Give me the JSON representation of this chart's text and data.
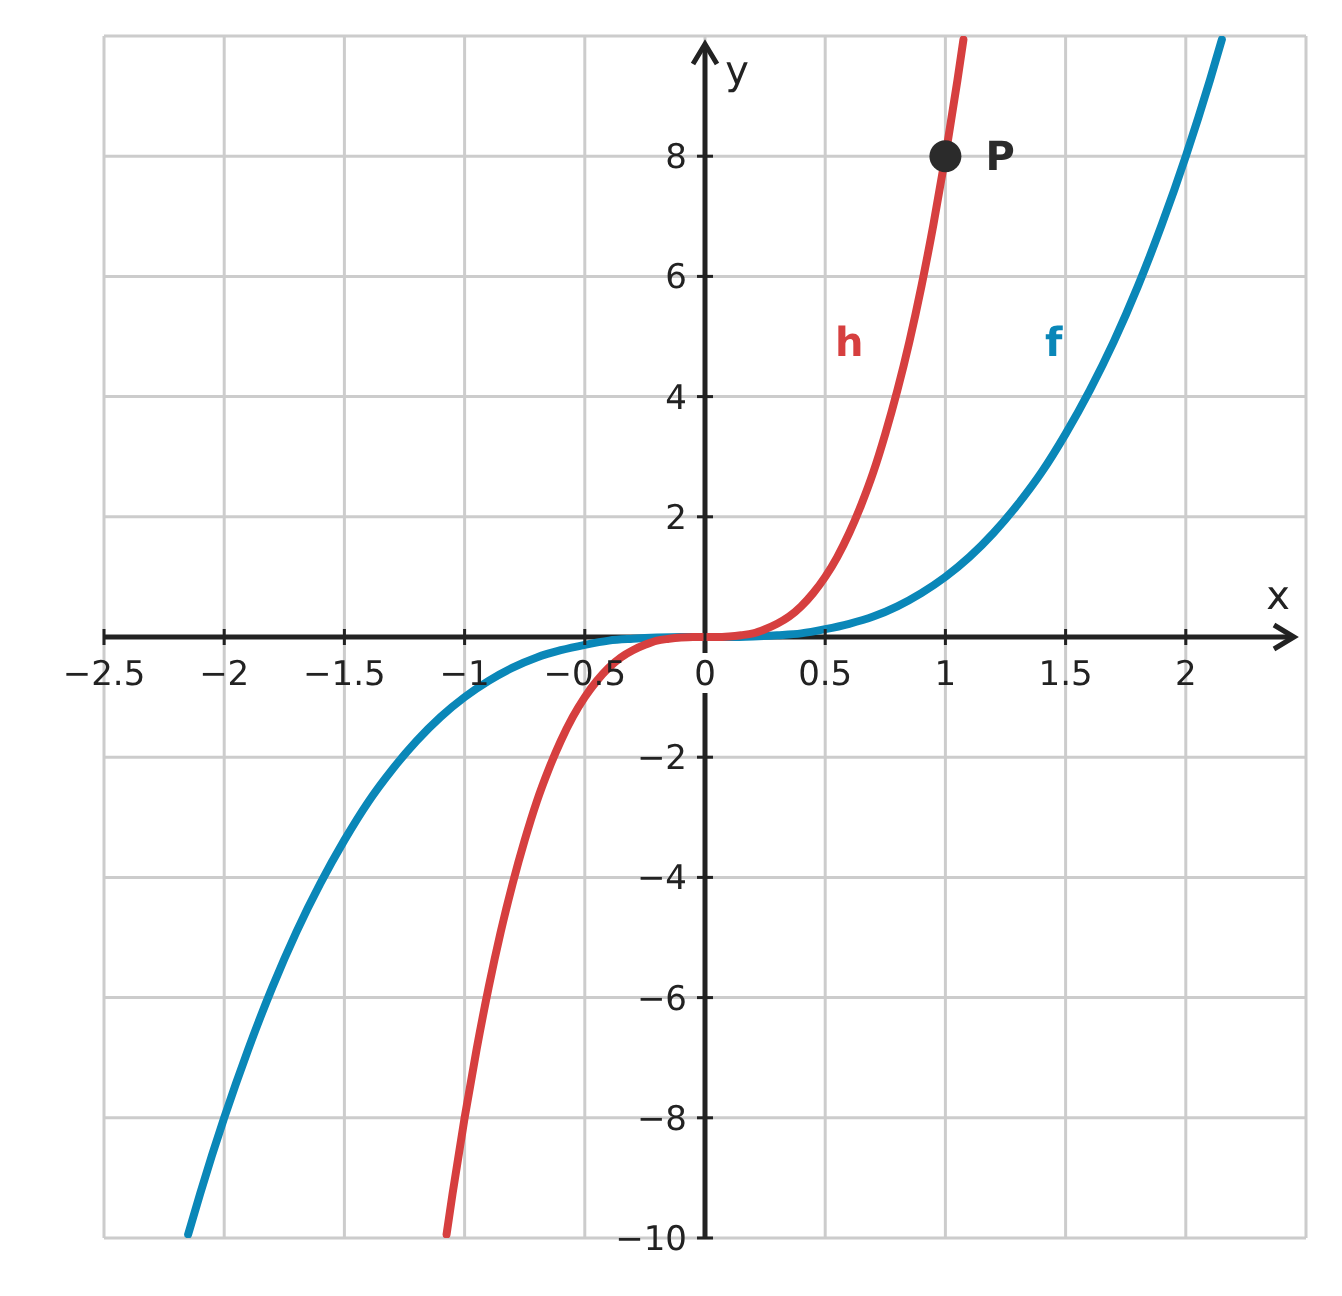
{
  "chart_data": {
    "type": "line",
    "xlabel": "x",
    "ylabel": "y",
    "xlim": [
      -2.5,
      2.5
    ],
    "ylim": [
      -10,
      10
    ],
    "xticks": [
      -2.5,
      -2,
      -1.5,
      -1,
      -0.5,
      0,
      0.5,
      1,
      1.5,
      2
    ],
    "yticks": [
      -10,
      -8,
      -6,
      -4,
      -2,
      2,
      4,
      6,
      8
    ],
    "grid": true,
    "legend": false,
    "line_style": "solid",
    "series": [
      {
        "name": "f",
        "color": "#0a87b8",
        "x": [
          -2.15,
          -2.1,
          -2,
          -1.9,
          -1.8,
          -1.7,
          -1.6,
          -1.5,
          -1.4,
          -1.3,
          -1.2,
          -1.1,
          -1,
          -0.9,
          -0.8,
          -0.7,
          -0.6,
          -0.5,
          -0.4,
          -0.3,
          -0.2,
          -0.1,
          0,
          0.1,
          0.2,
          0.3,
          0.4,
          0.5,
          0.6,
          0.7,
          0.8,
          0.9,
          1,
          1.1,
          1.2,
          1.3,
          1.4,
          1.5,
          1.6,
          1.7,
          1.8,
          1.9,
          2,
          2.1,
          2.15
        ],
        "values": [
          -9.94,
          -9.26,
          -8,
          -6.86,
          -5.83,
          -4.91,
          -4.1,
          -3.38,
          -2.74,
          -2.2,
          -1.73,
          -1.33,
          -1,
          -0.73,
          -0.51,
          -0.34,
          -0.22,
          -0.13,
          -0.06,
          -0.03,
          -0.01,
          0,
          0,
          0,
          0.01,
          0.03,
          0.06,
          0.13,
          0.22,
          0.34,
          0.51,
          0.73,
          1,
          1.33,
          1.73,
          2.2,
          2.74,
          3.38,
          4.1,
          4.91,
          5.83,
          6.86,
          8,
          9.26,
          9.94
        ]
      },
      {
        "name": "h",
        "color": "#d63f3f",
        "x": [
          -1.075,
          -1.05,
          -1,
          -0.95,
          -0.9,
          -0.85,
          -0.8,
          -0.75,
          -0.7,
          -0.65,
          -0.6,
          -0.55,
          -0.5,
          -0.45,
          -0.4,
          -0.35,
          -0.3,
          -0.25,
          -0.2,
          -0.15,
          -0.1,
          -0.05,
          0,
          0.05,
          0.1,
          0.15,
          0.2,
          0.25,
          0.3,
          0.35,
          0.4,
          0.45,
          0.5,
          0.55,
          0.6,
          0.65,
          0.7,
          0.75,
          0.8,
          0.85,
          0.9,
          0.95,
          1,
          1.05,
          1.075
        ],
        "values": [
          -9.94,
          -9.26,
          -8,
          -6.86,
          -5.83,
          -4.91,
          -4.1,
          -3.38,
          -2.74,
          -2.2,
          -1.73,
          -1.33,
          -1,
          -0.73,
          -0.51,
          -0.34,
          -0.22,
          -0.13,
          -0.06,
          -0.03,
          -0.01,
          0,
          0,
          0,
          0.01,
          0.03,
          0.06,
          0.13,
          0.22,
          0.34,
          0.51,
          0.73,
          1,
          1.33,
          1.73,
          2.2,
          2.74,
          3.38,
          4.1,
          4.91,
          5.83,
          6.86,
          8,
          9.26,
          9.94
        ]
      },
      {
        "name": "P",
        "type": "scatter",
        "color": "#2b2b2b",
        "x": [
          1
        ],
        "values": [
          8
        ]
      }
    ]
  }
}
